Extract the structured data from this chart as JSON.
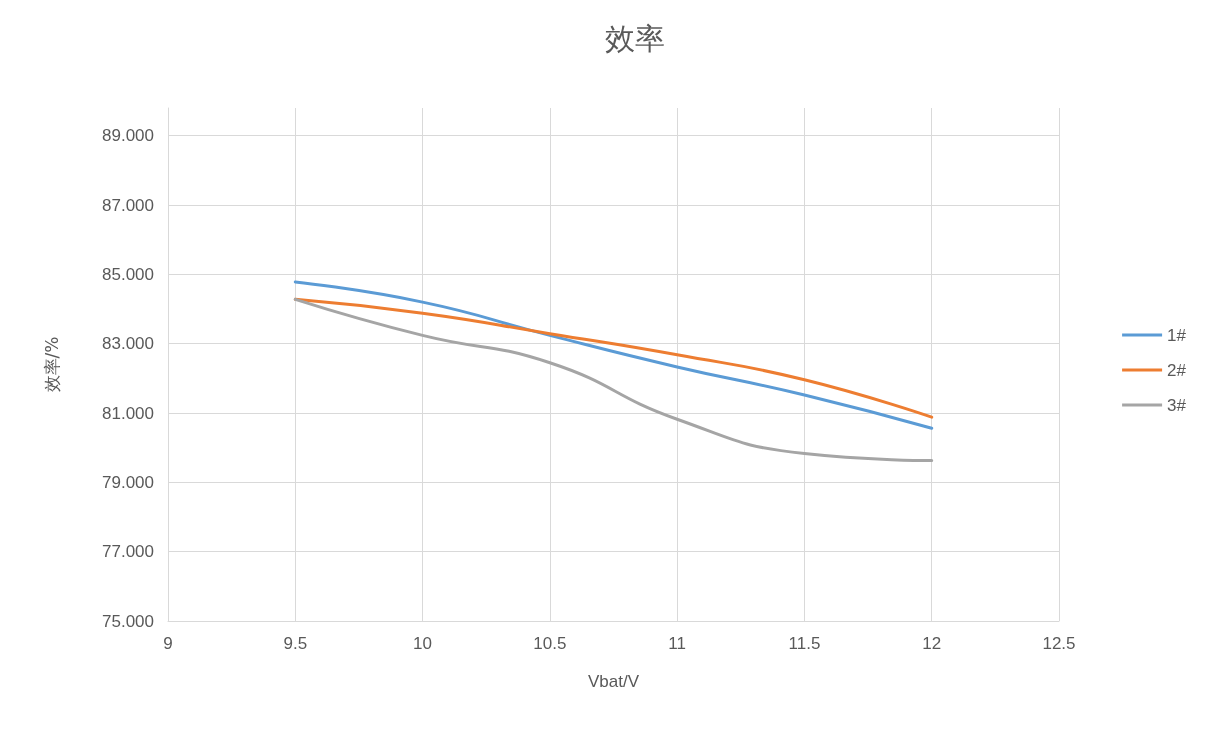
{
  "chart_data": {
    "type": "line",
    "title": "效率",
    "xlabel": "Vbat/V",
    "ylabel": "效率/%",
    "x": [
      9.5,
      10,
      10.5,
      11,
      11.5,
      12
    ],
    "series": [
      {
        "name": "1#",
        "color": "#5b9bd5",
        "values": [
          84.78,
          84.2,
          83.24,
          82.33,
          81.52,
          80.56
        ]
      },
      {
        "name": "2#",
        "color": "#ed7d31",
        "values": [
          84.28,
          83.88,
          83.29,
          82.68,
          81.96,
          80.88
        ]
      },
      {
        "name": "3#",
        "color": "#a5a5a5",
        "values": [
          84.28,
          83.24,
          82.45,
          80.82,
          79.83,
          79.63
        ]
      }
    ],
    "xlim": [
      9,
      12.5
    ],
    "xticks": [
      9,
      9.5,
      10,
      10.5,
      11,
      11.5,
      12,
      12.5
    ],
    "ylim": [
      75,
      89.8
    ],
    "yticks": [
      {
        "value": 75,
        "label": "75.000"
      },
      {
        "value": 77,
        "label": "77.000"
      },
      {
        "value": 79,
        "label": "79.000"
      },
      {
        "value": 81,
        "label": "81.000"
      },
      {
        "value": 83,
        "label": "83.000"
      },
      {
        "value": 85,
        "label": "85.000"
      },
      {
        "value": 87,
        "label": "87.000"
      },
      {
        "value": 89,
        "label": "89.000"
      }
    ],
    "grid": true,
    "legend": "right",
    "marker": "none",
    "line_style": "solid"
  }
}
